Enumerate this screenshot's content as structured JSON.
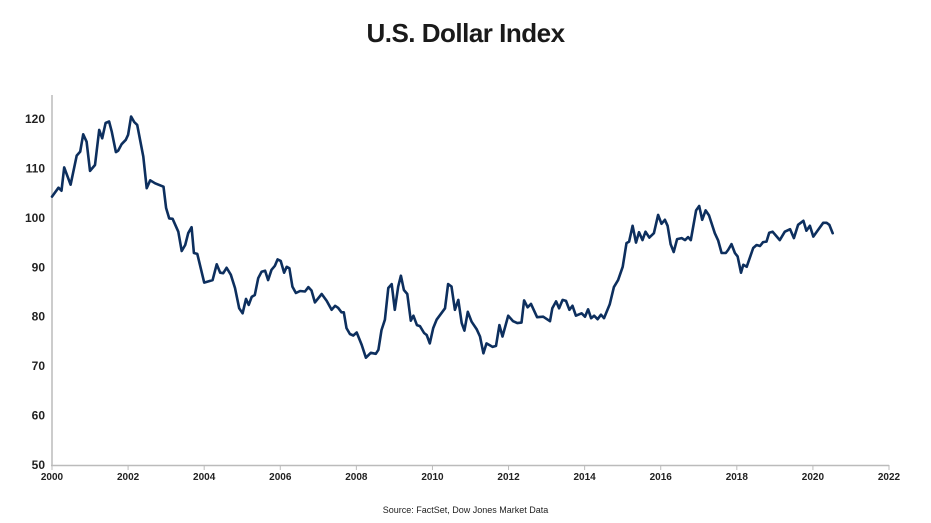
{
  "chart_data": {
    "type": "line",
    "title": "U.S. Dollar Index",
    "source": "Source: FactSet, Dow Jones Market Data",
    "xlabel": "",
    "ylabel": "",
    "xlim": [
      2000,
      2022
    ],
    "ylim": [
      50,
      120
    ],
    "x_ticks": [
      2000,
      2002,
      2004,
      2006,
      2008,
      2010,
      2012,
      2014,
      2016,
      2018,
      2020,
      2022
    ],
    "y_ticks": [
      50,
      60,
      70,
      80,
      90,
      100,
      110,
      120
    ],
    "grid": false,
    "line_color": "#0d2f5e",
    "series": [
      {
        "name": "U.S. Dollar Index",
        "points": [
          [
            2000.0,
            104.3
          ],
          [
            2000.17,
            106.1
          ],
          [
            2000.25,
            105.5
          ],
          [
            2000.32,
            110.2
          ],
          [
            2000.49,
            106.7
          ],
          [
            2000.65,
            112.6
          ],
          [
            2000.74,
            113.4
          ],
          [
            2000.82,
            116.9
          ],
          [
            2000.91,
            115.4
          ],
          [
            2001.0,
            109.5
          ],
          [
            2001.13,
            110.7
          ],
          [
            2001.24,
            117.8
          ],
          [
            2001.32,
            116.1
          ],
          [
            2001.41,
            119.2
          ],
          [
            2001.5,
            119.5
          ],
          [
            2001.57,
            117.5
          ],
          [
            2001.68,
            113.3
          ],
          [
            2001.74,
            113.6
          ],
          [
            2001.83,
            114.9
          ],
          [
            2001.94,
            115.8
          ],
          [
            2002.0,
            116.8
          ],
          [
            2002.08,
            120.5
          ],
          [
            2002.16,
            119.4
          ],
          [
            2002.24,
            118.8
          ],
          [
            2002.4,
            112.4
          ],
          [
            2002.49,
            106.0
          ],
          [
            2002.58,
            107.6
          ],
          [
            2002.71,
            107.0
          ],
          [
            2002.93,
            106.3
          ],
          [
            2003.0,
            102.0
          ],
          [
            2003.08,
            99.9
          ],
          [
            2003.17,
            99.8
          ],
          [
            2003.32,
            97.2
          ],
          [
            2003.41,
            93.3
          ],
          [
            2003.5,
            94.5
          ],
          [
            2003.58,
            96.9
          ],
          [
            2003.67,
            98.1
          ],
          [
            2003.73,
            92.9
          ],
          [
            2003.82,
            92.7
          ],
          [
            2004.0,
            86.9
          ],
          [
            2004.22,
            87.4
          ],
          [
            2004.33,
            90.6
          ],
          [
            2004.42,
            88.9
          ],
          [
            2004.5,
            88.8
          ],
          [
            2004.59,
            89.9
          ],
          [
            2004.7,
            88.5
          ],
          [
            2004.81,
            85.8
          ],
          [
            2004.92,
            81.7
          ],
          [
            2005.01,
            80.7
          ],
          [
            2005.1,
            83.6
          ],
          [
            2005.17,
            82.4
          ],
          [
            2005.25,
            84.0
          ],
          [
            2005.33,
            84.4
          ],
          [
            2005.42,
            87.8
          ],
          [
            2005.51,
            89.1
          ],
          [
            2005.6,
            89.3
          ],
          [
            2005.68,
            87.4
          ],
          [
            2005.77,
            89.5
          ],
          [
            2005.86,
            90.3
          ],
          [
            2005.93,
            91.6
          ],
          [
            2006.01,
            91.3
          ],
          [
            2006.1,
            88.9
          ],
          [
            2006.17,
            90.1
          ],
          [
            2006.24,
            89.8
          ],
          [
            2006.32,
            86.1
          ],
          [
            2006.41,
            84.8
          ],
          [
            2006.52,
            85.2
          ],
          [
            2006.65,
            85.1
          ],
          [
            2006.74,
            86.0
          ],
          [
            2006.82,
            85.3
          ],
          [
            2006.91,
            82.9
          ],
          [
            2007.09,
            84.6
          ],
          [
            2007.22,
            83.2
          ],
          [
            2007.35,
            81.4
          ],
          [
            2007.44,
            82.2
          ],
          [
            2007.52,
            81.8
          ],
          [
            2007.61,
            80.9
          ],
          [
            2007.67,
            80.9
          ],
          [
            2007.74,
            77.7
          ],
          [
            2007.83,
            76.5
          ],
          [
            2007.92,
            76.2
          ],
          [
            2008.01,
            76.8
          ],
          [
            2008.14,
            74.3
          ],
          [
            2008.25,
            71.7
          ],
          [
            2008.38,
            72.7
          ],
          [
            2008.51,
            72.5
          ],
          [
            2008.58,
            73.3
          ],
          [
            2008.66,
            77.3
          ],
          [
            2008.75,
            79.4
          ],
          [
            2008.84,
            85.8
          ],
          [
            2008.93,
            86.6
          ],
          [
            2009.01,
            81.4
          ],
          [
            2009.1,
            86.1
          ],
          [
            2009.17,
            88.3
          ],
          [
            2009.25,
            85.4
          ],
          [
            2009.34,
            84.6
          ],
          [
            2009.43,
            79.2
          ],
          [
            2009.5,
            80.2
          ],
          [
            2009.59,
            78.3
          ],
          [
            2009.67,
            78.1
          ],
          [
            2009.78,
            76.7
          ],
          [
            2009.85,
            76.3
          ],
          [
            2009.93,
            74.6
          ],
          [
            2010.02,
            77.7
          ],
          [
            2010.11,
            79.4
          ],
          [
            2010.33,
            81.7
          ],
          [
            2010.41,
            86.6
          ],
          [
            2010.5,
            86.1
          ],
          [
            2010.59,
            81.4
          ],
          [
            2010.68,
            83.4
          ],
          [
            2010.77,
            78.7
          ],
          [
            2010.84,
            77.2
          ],
          [
            2010.93,
            81.0
          ],
          [
            2011.03,
            79.0
          ],
          [
            2011.16,
            77.5
          ],
          [
            2011.25,
            76.0
          ],
          [
            2011.34,
            72.6
          ],
          [
            2011.42,
            74.6
          ],
          [
            2011.58,
            73.9
          ],
          [
            2011.67,
            74.1
          ],
          [
            2011.76,
            78.3
          ],
          [
            2011.84,
            76.0
          ],
          [
            2011.99,
            80.2
          ],
          [
            2012.12,
            79.1
          ],
          [
            2012.23,
            78.7
          ],
          [
            2012.34,
            78.8
          ],
          [
            2012.41,
            83.3
          ],
          [
            2012.5,
            81.9
          ],
          [
            2012.59,
            82.6
          ],
          [
            2012.75,
            79.9
          ],
          [
            2012.91,
            80.0
          ],
          [
            2013.09,
            79.1
          ],
          [
            2013.15,
            81.7
          ],
          [
            2013.25,
            83.1
          ],
          [
            2013.33,
            81.7
          ],
          [
            2013.42,
            83.4
          ],
          [
            2013.51,
            83.2
          ],
          [
            2013.6,
            81.4
          ],
          [
            2013.68,
            82.2
          ],
          [
            2013.77,
            80.2
          ],
          [
            2013.92,
            80.7
          ],
          [
            2014.01,
            80.0
          ],
          [
            2014.09,
            81.5
          ],
          [
            2014.17,
            79.7
          ],
          [
            2014.25,
            80.2
          ],
          [
            2014.34,
            79.5
          ],
          [
            2014.43,
            80.4
          ],
          [
            2014.51,
            79.7
          ],
          [
            2014.66,
            82.5
          ],
          [
            2014.77,
            86.0
          ],
          [
            2014.88,
            87.4
          ],
          [
            2015.0,
            90.1
          ],
          [
            2015.1,
            94.9
          ],
          [
            2015.17,
            95.2
          ],
          [
            2015.26,
            98.4
          ],
          [
            2015.35,
            95.0
          ],
          [
            2015.43,
            97.1
          ],
          [
            2015.52,
            95.5
          ],
          [
            2015.6,
            97.2
          ],
          [
            2015.7,
            96.0
          ],
          [
            2015.82,
            96.9
          ],
          [
            2015.93,
            100.6
          ],
          [
            2016.02,
            98.8
          ],
          [
            2016.11,
            99.6
          ],
          [
            2016.18,
            98.4
          ],
          [
            2016.26,
            94.7
          ],
          [
            2016.34,
            93.1
          ],
          [
            2016.43,
            95.7
          ],
          [
            2016.55,
            95.9
          ],
          [
            2016.64,
            95.5
          ],
          [
            2016.72,
            96.1
          ],
          [
            2016.79,
            95.5
          ],
          [
            2016.93,
            101.5
          ],
          [
            2017.01,
            102.4
          ],
          [
            2017.09,
            99.6
          ],
          [
            2017.18,
            101.5
          ],
          [
            2017.27,
            100.5
          ],
          [
            2017.42,
            96.9
          ],
          [
            2017.51,
            95.4
          ],
          [
            2017.6,
            92.9
          ],
          [
            2017.71,
            92.9
          ],
          [
            2017.77,
            93.5
          ],
          [
            2017.86,
            94.7
          ],
          [
            2017.95,
            92.9
          ],
          [
            2018.02,
            92.2
          ],
          [
            2018.11,
            88.9
          ],
          [
            2018.17,
            90.5
          ],
          [
            2018.26,
            90.1
          ],
          [
            2018.43,
            93.9
          ],
          [
            2018.52,
            94.5
          ],
          [
            2018.61,
            94.3
          ],
          [
            2018.69,
            95.1
          ],
          [
            2018.78,
            95.2
          ],
          [
            2018.85,
            97.0
          ],
          [
            2018.94,
            97.2
          ],
          [
            2019.05,
            96.2
          ],
          [
            2019.13,
            95.5
          ],
          [
            2019.26,
            97.2
          ],
          [
            2019.4,
            97.7
          ],
          [
            2019.5,
            95.9
          ],
          [
            2019.61,
            98.6
          ],
          [
            2019.75,
            99.4
          ],
          [
            2019.83,
            97.4
          ],
          [
            2019.92,
            98.4
          ],
          [
            2020.01,
            96.2
          ],
          [
            2020.14,
            97.6
          ],
          [
            2020.27,
            99.0
          ],
          [
            2020.36,
            99.0
          ],
          [
            2020.43,
            98.6
          ],
          [
            2020.52,
            96.9
          ]
        ]
      }
    ]
  }
}
